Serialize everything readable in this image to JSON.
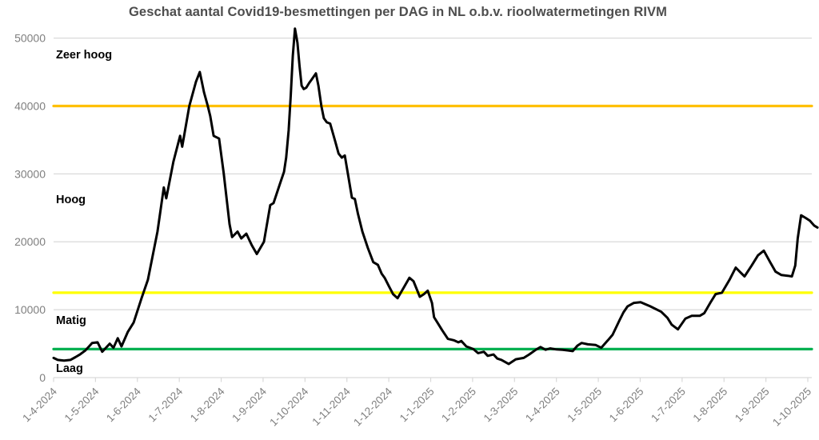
{
  "chart_data": {
    "type": "line",
    "title": "Geschat aantal Covid19-besmettingen per DAG in NL o.b.v. rioolwatermetingen RIVM",
    "grid": true,
    "legend": "none",
    "y_axis": {
      "min": 0,
      "max": 50000,
      "tick_values": [
        0,
        10000,
        20000,
        30000,
        40000,
        50000
      ],
      "tick_labels": [
        "0",
        "10000",
        "20000",
        "30000",
        "40000",
        "50000"
      ]
    },
    "x_axis": {
      "unit": "months after first tick (1-4-2024), monthly ticks",
      "tick_labels": [
        "1-4-2024",
        "1-5-2024",
        "1-6-2024",
        "1-7-2024",
        "1-8-2024",
        "1-9-2024",
        "1-10-2024",
        "1-11-2024",
        "1-12-2024",
        "1-1-2025",
        "1-2-2025",
        "1-3-2025",
        "1-4-2025",
        "1-5-2025",
        "1-6-2025",
        "1-7-2025",
        "1-8-2025",
        "1-9-2025",
        "1-10-2025"
      ]
    },
    "reference_lines": [
      {
        "name": "grens-zeer-hoog",
        "value": 40000,
        "color": "#FFC000"
      },
      {
        "name": "grens-hoog",
        "value": 12500,
        "color": "#FFFF00"
      },
      {
        "name": "grens-matig",
        "value": 4200,
        "color": "#00B050"
      }
    ],
    "zone_labels": [
      {
        "text": "Zeer hoog",
        "y_value": 47600
      },
      {
        "text": "Hoog",
        "y_value": 26300
      },
      {
        "text": "Matig",
        "y_value": 8500
      },
      {
        "text": "Laag",
        "y_value": 1400
      }
    ],
    "series": [
      {
        "color": "#000000",
        "x_unit": "months_after_1-4-2024",
        "points": [
          [
            0.0,
            2900
          ],
          [
            0.1,
            2600
          ],
          [
            0.25,
            2500
          ],
          [
            0.4,
            2600
          ],
          [
            0.52,
            3000
          ],
          [
            0.63,
            3400
          ],
          [
            0.76,
            4000
          ],
          [
            0.92,
            5100
          ],
          [
            1.05,
            5200
          ],
          [
            1.16,
            3800
          ],
          [
            1.34,
            5000
          ],
          [
            1.43,
            4400
          ],
          [
            1.53,
            5800
          ],
          [
            1.62,
            4600
          ],
          [
            1.77,
            6700
          ],
          [
            1.91,
            8100
          ],
          [
            2.1,
            11700
          ],
          [
            2.25,
            14400
          ],
          [
            2.48,
            21500
          ],
          [
            2.63,
            28000
          ],
          [
            2.69,
            26400
          ],
          [
            2.86,
            31800
          ],
          [
            3.02,
            35600
          ],
          [
            3.07,
            34000
          ],
          [
            3.24,
            40000
          ],
          [
            3.4,
            43600
          ],
          [
            3.49,
            45000
          ],
          [
            3.59,
            42000
          ],
          [
            3.68,
            40000
          ],
          [
            3.74,
            38500
          ],
          [
            3.82,
            35600
          ],
          [
            3.95,
            35200
          ],
          [
            4.06,
            30100
          ],
          [
            4.2,
            22600
          ],
          [
            4.26,
            20700
          ],
          [
            4.39,
            21500
          ],
          [
            4.48,
            20500
          ],
          [
            4.6,
            21200
          ],
          [
            4.73,
            19500
          ],
          [
            4.85,
            18200
          ],
          [
            5.02,
            20000
          ],
          [
            5.17,
            25400
          ],
          [
            5.25,
            25700
          ],
          [
            5.4,
            28500
          ],
          [
            5.5,
            30300
          ],
          [
            5.55,
            32400
          ],
          [
            5.61,
            36400
          ],
          [
            5.66,
            41500
          ],
          [
            5.71,
            47400
          ],
          [
            5.76,
            51400
          ],
          [
            5.82,
            49300
          ],
          [
            5.87,
            45900
          ],
          [
            5.92,
            43000
          ],
          [
            5.97,
            42500
          ],
          [
            6.03,
            42700
          ],
          [
            6.1,
            43400
          ],
          [
            6.16,
            43900
          ],
          [
            6.26,
            44800
          ],
          [
            6.32,
            43000
          ],
          [
            6.39,
            40000
          ],
          [
            6.45,
            38200
          ],
          [
            6.52,
            37600
          ],
          [
            6.6,
            37400
          ],
          [
            6.72,
            34800
          ],
          [
            6.8,
            33000
          ],
          [
            6.88,
            32400
          ],
          [
            6.95,
            32700
          ],
          [
            7.03,
            29800
          ],
          [
            7.12,
            26500
          ],
          [
            7.19,
            26300
          ],
          [
            7.26,
            24200
          ],
          [
            7.37,
            21500
          ],
          [
            7.5,
            19100
          ],
          [
            7.63,
            17000
          ],
          [
            7.74,
            16600
          ],
          [
            7.83,
            15300
          ],
          [
            7.9,
            14700
          ],
          [
            8.0,
            13500
          ],
          [
            8.1,
            12300
          ],
          [
            8.21,
            11700
          ],
          [
            8.36,
            13300
          ],
          [
            8.49,
            14700
          ],
          [
            8.59,
            14200
          ],
          [
            8.74,
            11900
          ],
          [
            8.84,
            12300
          ],
          [
            8.93,
            12800
          ],
          [
            9.03,
            11000
          ],
          [
            9.08,
            8900
          ],
          [
            9.16,
            8100
          ],
          [
            9.27,
            7000
          ],
          [
            9.41,
            5700
          ],
          [
            9.55,
            5500
          ],
          [
            9.66,
            5200
          ],
          [
            9.73,
            5400
          ],
          [
            9.85,
            4600
          ],
          [
            10.02,
            4200
          ],
          [
            10.13,
            3600
          ],
          [
            10.27,
            3800
          ],
          [
            10.36,
            3200
          ],
          [
            10.5,
            3400
          ],
          [
            10.59,
            2800
          ],
          [
            10.69,
            2600
          ],
          [
            10.86,
            2000
          ],
          [
            11.03,
            2700
          ],
          [
            11.22,
            2900
          ],
          [
            11.35,
            3400
          ],
          [
            11.51,
            4100
          ],
          [
            11.62,
            4500
          ],
          [
            11.74,
            4100
          ],
          [
            11.85,
            4300
          ],
          [
            12.0,
            4150
          ],
          [
            12.15,
            4100
          ],
          [
            12.27,
            4000
          ],
          [
            12.39,
            3900
          ],
          [
            12.5,
            4700
          ],
          [
            12.6,
            5100
          ],
          [
            12.75,
            4900
          ],
          [
            12.94,
            4800
          ],
          [
            13.07,
            4400
          ],
          [
            13.23,
            5500
          ],
          [
            13.34,
            6300
          ],
          [
            13.51,
            8500
          ],
          [
            13.6,
            9600
          ],
          [
            13.7,
            10500
          ],
          [
            13.85,
            11000
          ],
          [
            14.01,
            11100
          ],
          [
            14.24,
            10500
          ],
          [
            14.5,
            9700
          ],
          [
            14.65,
            8800
          ],
          [
            14.75,
            7800
          ],
          [
            14.9,
            7100
          ],
          [
            15.08,
            8700
          ],
          [
            15.23,
            9100
          ],
          [
            15.42,
            9100
          ],
          [
            15.53,
            9500
          ],
          [
            15.67,
            11000
          ],
          [
            15.8,
            12300
          ],
          [
            15.95,
            12500
          ],
          [
            16.13,
            14400
          ],
          [
            16.28,
            16200
          ],
          [
            16.39,
            15500
          ],
          [
            16.49,
            14900
          ],
          [
            16.66,
            16500
          ],
          [
            16.81,
            18000
          ],
          [
            16.95,
            18700
          ],
          [
            17.1,
            17000
          ],
          [
            17.23,
            15600
          ],
          [
            17.37,
            15100
          ],
          [
            17.52,
            15000
          ],
          [
            17.62,
            14900
          ],
          [
            17.7,
            16500
          ],
          [
            17.76,
            20500
          ],
          [
            17.84,
            23900
          ],
          [
            17.95,
            23500
          ],
          [
            18.05,
            23100
          ],
          [
            18.15,
            22400
          ],
          [
            18.23,
            22100
          ]
        ]
      }
    ],
    "style": {
      "grid_color": "#D9D9D9",
      "axis_color": "#D9D9D9",
      "tick_label_color": "#7f7f7f",
      "title_color": "#4d4d4d",
      "series_stroke_width": 3,
      "reference_stroke_width": 3.2
    }
  }
}
